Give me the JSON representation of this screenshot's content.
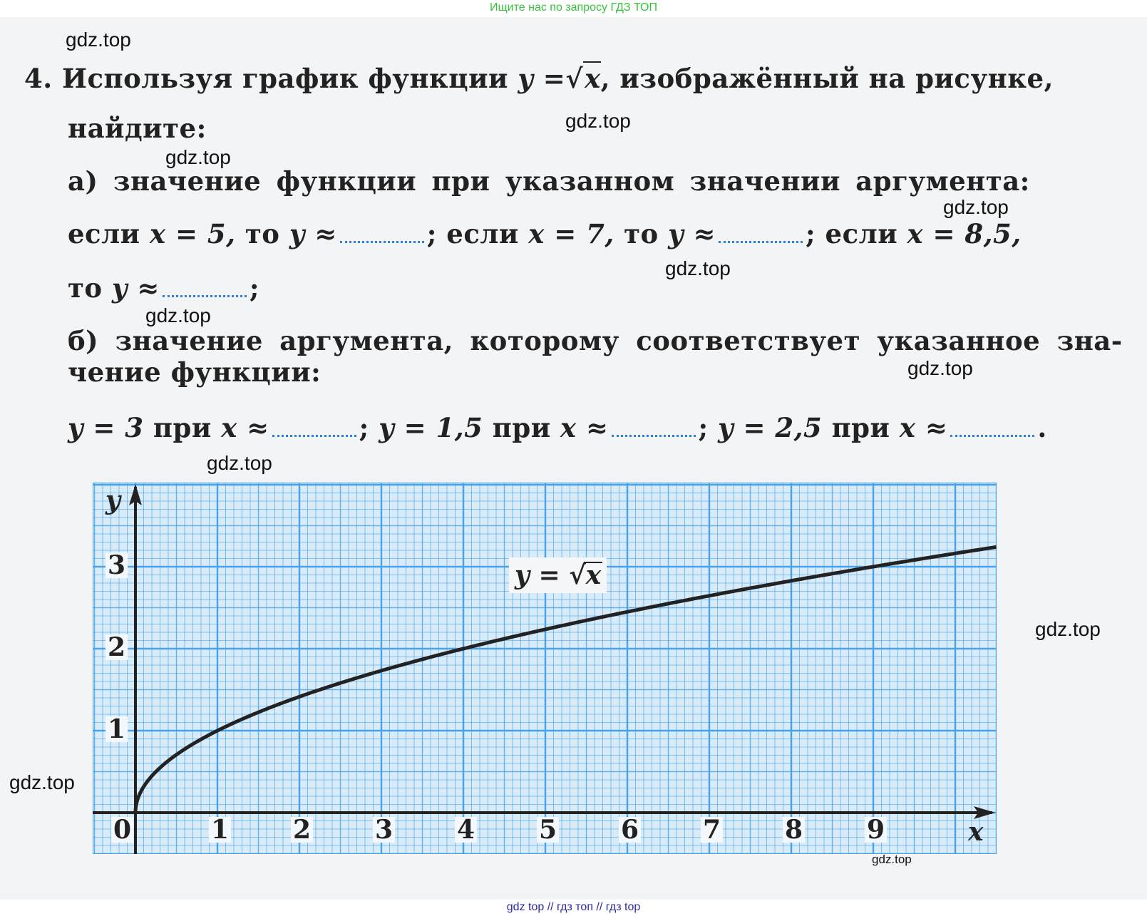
{
  "banner": {
    "top": "Ищите нас по запросу ГДЗ ТОП",
    "bottom": "gdz top  //  гдз топ  //  гдз top"
  },
  "watermark": "gdz.top",
  "problem": {
    "number": "4.",
    "line1_text": "Используя график функции",
    "formula_y": "y =",
    "formula_x": "x",
    "line1_rest": ", изображённый на рисунке,",
    "line2": "найдите:",
    "part_a": {
      "title": "а) значение функции при указанном значении аргумента:",
      "seg1": "если",
      "x1": "x = 5,",
      "seg2": "то",
      "y1": "y ≈",
      "seg3": "; если",
      "x2": "x = 7,",
      "seg4": "то",
      "y2": "y ≈",
      "seg5": "; если",
      "x3": "x = 8,5,",
      "seg6": "то",
      "y3": "y ≈",
      "seg7": ";"
    },
    "part_b": {
      "title1": "б) значение аргумента, которому соответствует указанное зна-",
      "title2": "чение функции:",
      "q1": "y = 3",
      "q1_text": "при",
      "q1_x": "x ≈",
      "sep1": ";",
      "q2": "y = 1,5",
      "q2_text": "при",
      "q2_x": "x ≈",
      "sep2": ";",
      "q3": "y = 2,5",
      "q3_text": "при",
      "q3_x": "x ≈",
      "end": "."
    }
  },
  "chart_data": {
    "type": "line",
    "function": "y = √x",
    "curve_label_y": "y =",
    "curve_label_x": "x",
    "xlabel": "x",
    "ylabel": "y",
    "xlim": [
      -0.5,
      10.5
    ],
    "ylim": [
      -0.5,
      4.0
    ],
    "x_ticks": [
      "0",
      "1",
      "2",
      "3",
      "4",
      "5",
      "6",
      "7",
      "8",
      "9"
    ],
    "y_ticks": [
      "1",
      "2",
      "3"
    ],
    "grid": true,
    "grid_minor_step": 0.1,
    "colors": {
      "grid": "#4aa3e8",
      "paper": "#d7ebf8",
      "curve": "#222222"
    },
    "series": [
      {
        "x": [
          0,
          0.25,
          1,
          2,
          3,
          4,
          5,
          6,
          7,
          8,
          9,
          10,
          10.5
        ],
        "y": [
          0,
          0.5,
          1,
          1.41,
          1.73,
          2,
          2.24,
          2.45,
          2.65,
          2.83,
          3,
          3.16,
          3.24
        ]
      }
    ]
  }
}
